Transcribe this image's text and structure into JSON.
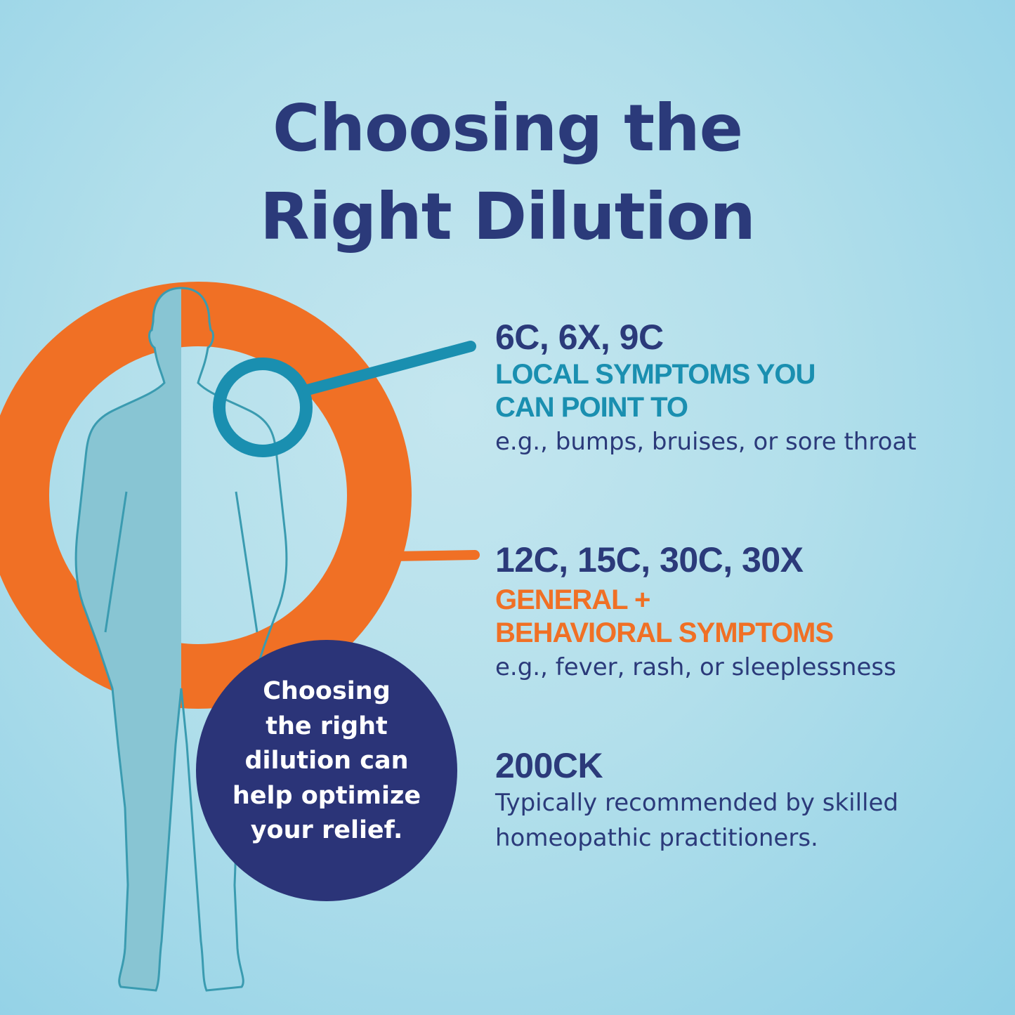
{
  "title": {
    "line1": "Choosing the",
    "line2": "Right Dilution"
  },
  "colors": {
    "navy": "#2b3478",
    "teal": "#1a8fb0",
    "orange": "#f07025",
    "background": "#b2dfeb"
  },
  "sections": [
    {
      "dilutions": "6C, 6X, 9C",
      "category_lines": [
        "LOCAL SYMPTOMS YOU",
        "CAN POINT TO"
      ],
      "category_color": "#1a8fb0",
      "examples": [
        "e.g., bumps, bruises, or sore throat"
      ]
    },
    {
      "dilutions": "12C, 15C, 30C, 30X",
      "category_lines": [
        "GENERAL +",
        "BEHAVIORAL SYMPTOMS"
      ],
      "category_color": "#f07025",
      "examples": [
        "e.g., fever, rash, or sleeplessness"
      ]
    },
    {
      "dilutions": "200CK",
      "category_lines": [],
      "examples": [
        "Typically recommended by skilled",
        "homeopathic practitioners."
      ]
    }
  ],
  "bubble": {
    "lines": [
      "Choosing",
      "the right",
      "dilution can",
      "help optimize",
      "your relief."
    ]
  },
  "icons": [
    "human-body-figure",
    "magnifier-ring",
    "orange-brush-ring"
  ]
}
